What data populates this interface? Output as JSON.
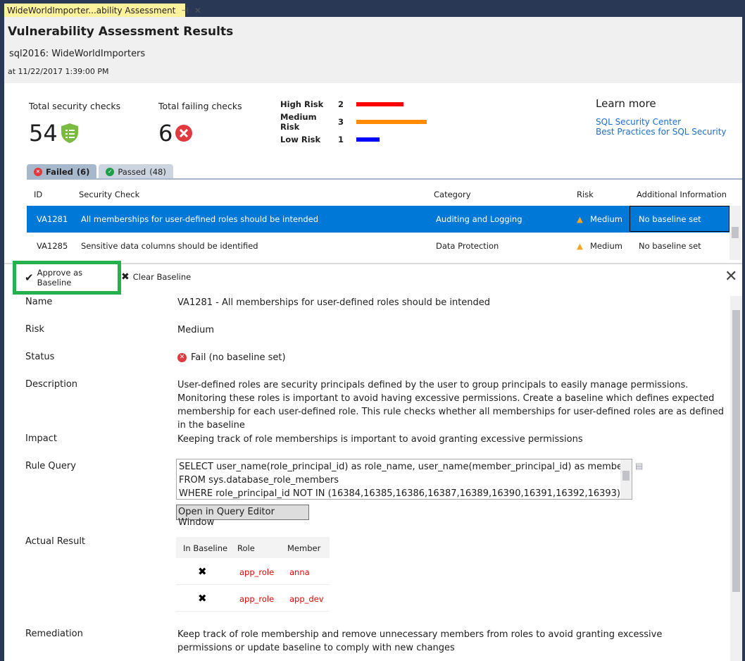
{
  "tab": {
    "title": "WideWorldImporter...ability Assessment",
    "pin_icon": "pin-icon",
    "close_icon": "close-icon"
  },
  "header": {
    "title": "Vulnerability Assessment Results",
    "server": "sql2016:  WideWorldImporters",
    "timestamp": "at 11/22/2017 1:39:00 PM"
  },
  "summary": {
    "total_label": "Total security checks",
    "total_value": "54",
    "failing_label": "Total failing checks",
    "failing_value": "6",
    "risks": [
      {
        "label": "High Risk",
        "count": "2",
        "color": "#ff0000"
      },
      {
        "label": "Medium Risk",
        "count": "3",
        "color": "#ff8c00"
      },
      {
        "label": "Low Risk",
        "count": "1",
        "color": "#0000ff"
      }
    ]
  },
  "learn_more": {
    "title": "Learn more",
    "links": [
      "SQL Security Center",
      "Best Practices for SQL Security"
    ]
  },
  "filter_tabs": [
    {
      "label": "Failed",
      "count": "(6)"
    },
    {
      "label": "Passed",
      "count": "(48)"
    }
  ],
  "grid": {
    "columns": [
      "ID",
      "Security Check",
      "Category",
      "Risk",
      "Additional Information"
    ],
    "rows": [
      {
        "id": "VA1281",
        "check": "All memberships for user-defined roles should be intended",
        "category": "Auditing and Logging",
        "risk": "Medium",
        "info": "No baseline set"
      },
      {
        "id": "VA1285",
        "check": "Sensitive data columns should be identified",
        "category": "Data Protection",
        "risk": "Medium",
        "info": "No baseline set"
      }
    ]
  },
  "toolbar": {
    "approve": "Approve as Baseline",
    "clear": "Clear Baseline"
  },
  "details": {
    "labels": {
      "name": "Name",
      "risk": "Risk",
      "status": "Status",
      "description": "Description",
      "impact": "Impact",
      "query": "Rule Query",
      "result": "Actual Result",
      "remediation": "Remediation"
    },
    "name": "VA1281 - All memberships for user-defined roles should be intended",
    "risk": "Medium",
    "status": "Fail (no baseline set)",
    "description": "User-defined roles are security principals defined by the user to group principals to easily manage permissions. Monitoring these roles is important to avoid having excessive permissions. Create a baseline which defines expected membership for each user-defined role. This rule checks whether all memberships for user-defined roles are as defined in the baseline",
    "impact": "Keeping track of role memberships is important to avoid granting excessive permissions",
    "query": [
      "SELECT user_name(role_principal_id) as role_name, user_name(member_principal_id) as member_name",
      "FROM sys.database_role_members",
      "WHERE role_principal_id NOT IN (16384,16385,16386,16387,16389,16390,16391,16392,16393)"
    ],
    "open_query": "Open in Query Editor Window",
    "result_columns": [
      "In Baseline",
      "Role",
      "Member"
    ],
    "result_rows": [
      {
        "role": "app_role",
        "member": "anna"
      },
      {
        "role": "app_role",
        "member": "app_dev"
      }
    ],
    "remediation": "Keep track of role membership and remove unnecessary members from roles to avoid granting excessive permissions or update baseline to comply with new changes"
  }
}
